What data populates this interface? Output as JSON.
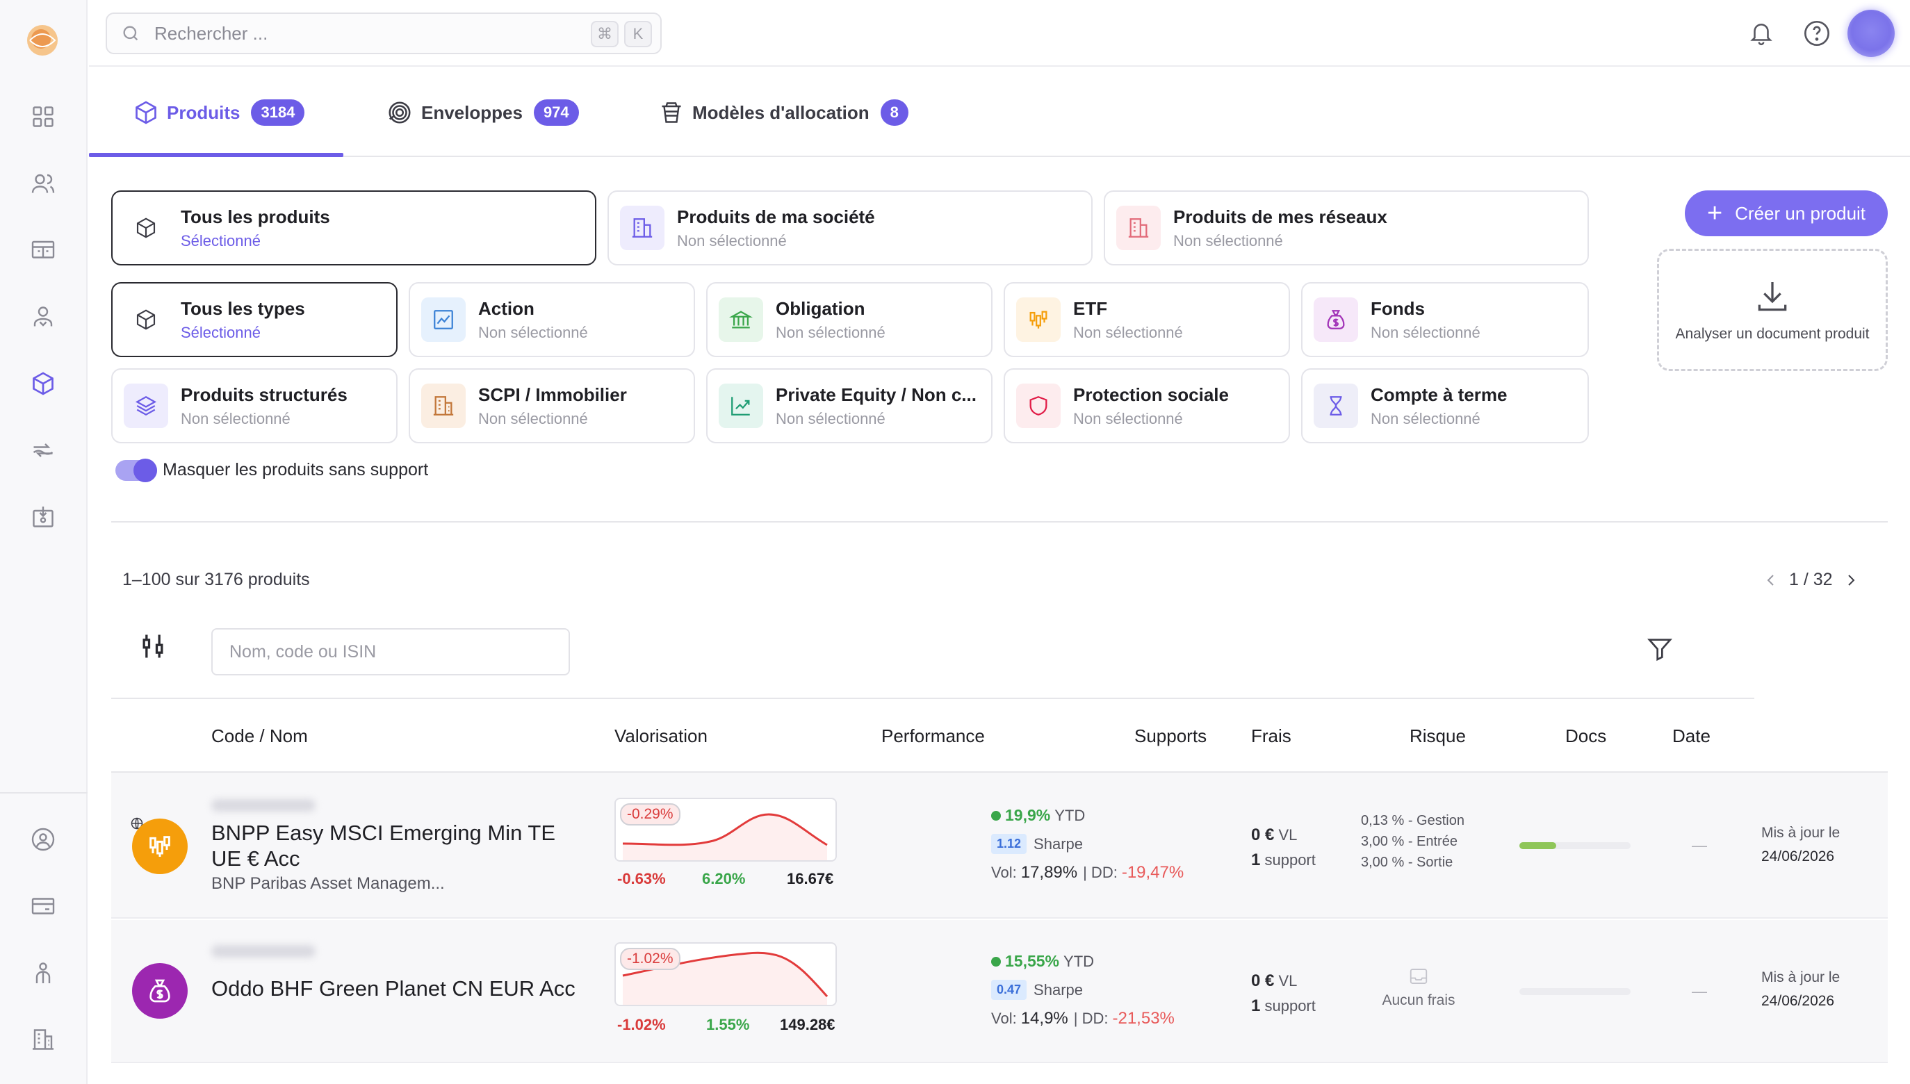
{
  "search": {
    "placeholder": "Rechercher ...",
    "kbd1": "⌘",
    "kbd2": "K"
  },
  "tabs": [
    {
      "label": "Produits",
      "count": "3184"
    },
    {
      "label": "Enveloppes",
      "count": "974"
    },
    {
      "label": "Modèles d'allocation",
      "count": "8"
    }
  ],
  "scope_cards": [
    {
      "title": "Tous les produits",
      "status": "Sélectionné"
    },
    {
      "title": "Produits de ma société",
      "status": "Non sélectionné"
    },
    {
      "title": "Produits de mes réseaux",
      "status": "Non sélectionné"
    }
  ],
  "type_cards": [
    {
      "title": "Tous les types",
      "status": "Sélectionné"
    },
    {
      "title": "Action",
      "status": "Non sélectionné"
    },
    {
      "title": "Obligation",
      "status": "Non sélectionné"
    },
    {
      "title": "ETF",
      "status": "Non sélectionné"
    },
    {
      "title": "Fonds",
      "status": "Non sélectionné"
    },
    {
      "title": "Produits structurés",
      "status": "Non sélectionné"
    },
    {
      "title": "SCPI / Immobilier",
      "status": "Non sélectionné"
    },
    {
      "title": "Private Equity / Non c...",
      "status": "Non sélectionné"
    },
    {
      "title": "Protection sociale",
      "status": "Non sélectionné"
    },
    {
      "title": "Compte à terme",
      "status": "Non sélectionné"
    }
  ],
  "actions": {
    "create": "Créer un produit",
    "analyze": "Analyser un document produit"
  },
  "toggle": {
    "label": "Masquer les produits sans support",
    "on": true
  },
  "list": {
    "count_text": "1–100 sur 3176 produits",
    "pager": "1 / 32",
    "search_placeholder": "Nom, code ou ISIN"
  },
  "columns": [
    "Code / Nom",
    "Valorisation",
    "Performance",
    "Supports",
    "Frais",
    "Risque",
    "Docs",
    "Date"
  ],
  "rows": [
    {
      "name": "BNPP Easy MSCI Emerging Min TE UE € Acc",
      "company": "BNP Paribas Asset Managem...",
      "spark_badge": "-0.29%",
      "v1": "-0.63%",
      "v2": "6.20%",
      "v3": "16.67€",
      "ytd": "19,9%",
      "ytd_label": "YTD",
      "sharpe": "1.12",
      "sharpe_label": "Sharpe",
      "vol_label": "Vol:",
      "vol": "17,89%",
      "dd_label": "| DD:",
      "dd": "-19,47%",
      "sup_value": "0 €",
      "sup_unit": "VL",
      "sup_count": "1",
      "sup_label": "support",
      "fees": [
        "0,13 % - Gestion",
        "3,00 % - Entrée",
        "3,00 % - Sortie"
      ],
      "risk_level": 0.33,
      "docs": "—",
      "date_label": "Mis à jour le",
      "date": "24/06/2026",
      "more": "•••",
      "avatar_color": "#f59e0b"
    },
    {
      "name": "Oddo BHF Green Planet CN EUR Acc",
      "company": "",
      "spark_badge": "-1.02%",
      "v1": "-1.02%",
      "v2": "1.55%",
      "v3": "149.28€",
      "ytd": "15,55%",
      "ytd_label": "YTD",
      "sharpe": "0.47",
      "sharpe_label": "Sharpe",
      "vol_label": "Vol:",
      "vol": "14,9%",
      "dd_label": "| DD:",
      "dd": "-21,53%",
      "sup_value": "0 €",
      "sup_unit": "VL",
      "sup_count": "1",
      "sup_label": "support",
      "fees_empty": "Aucun frais",
      "risk_level": 0,
      "docs": "—",
      "date_label": "Mis à jour le",
      "date": "24/06/2026",
      "more": "•••",
      "avatar_color": "#9c27b0"
    }
  ]
}
